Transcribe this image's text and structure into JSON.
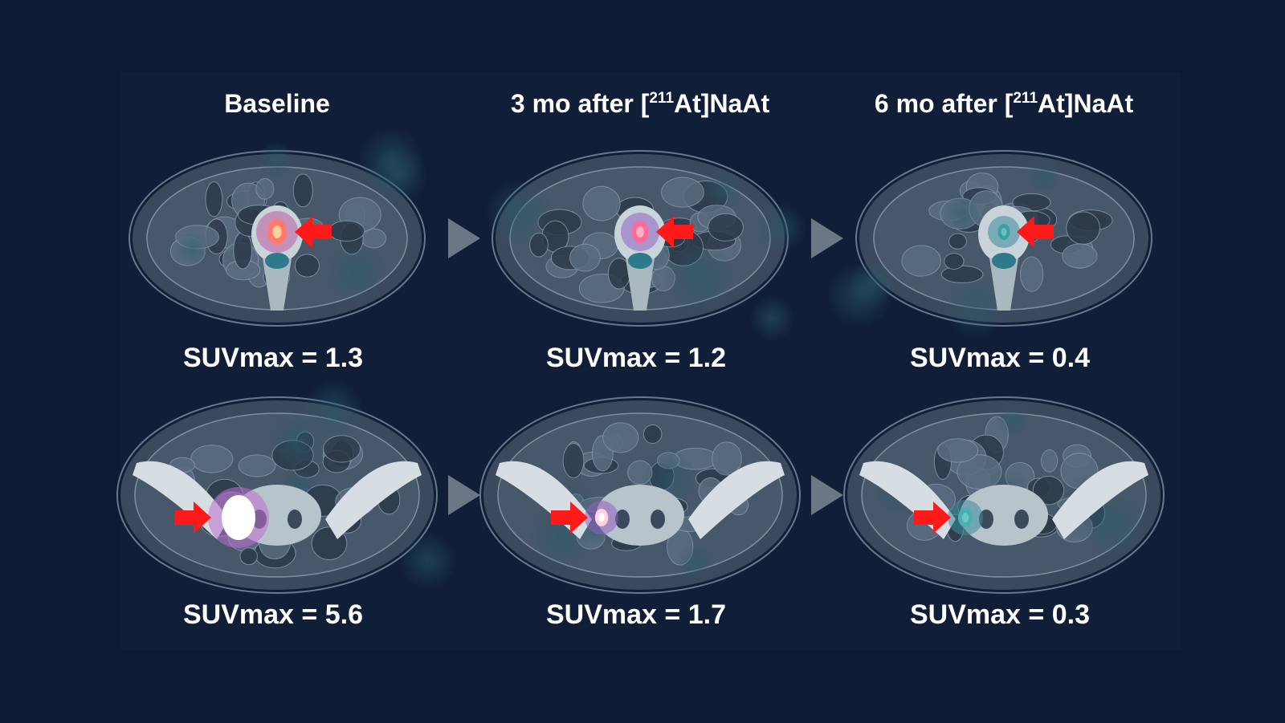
{
  "columns": [
    {
      "title": {
        "text": "Baseline"
      }
    },
    {
      "title": {
        "prefix": "3 mo after [",
        "superscript": "211",
        "suffix": "At]NaAt"
      }
    },
    {
      "title": {
        "prefix": "6 mo after [",
        "superscript": "211",
        "suffix": "At]NaAt"
      }
    }
  ],
  "rows": [
    {
      "labels": [
        "SUVmax = 1.3",
        "SUVmax = 1.2",
        "SUVmax = 0.4"
      ]
    },
    {
      "labels": [
        "SUVmax = 5.6",
        "SUVmax = 1.7",
        "SUVmax = 0.3"
      ]
    }
  ]
}
